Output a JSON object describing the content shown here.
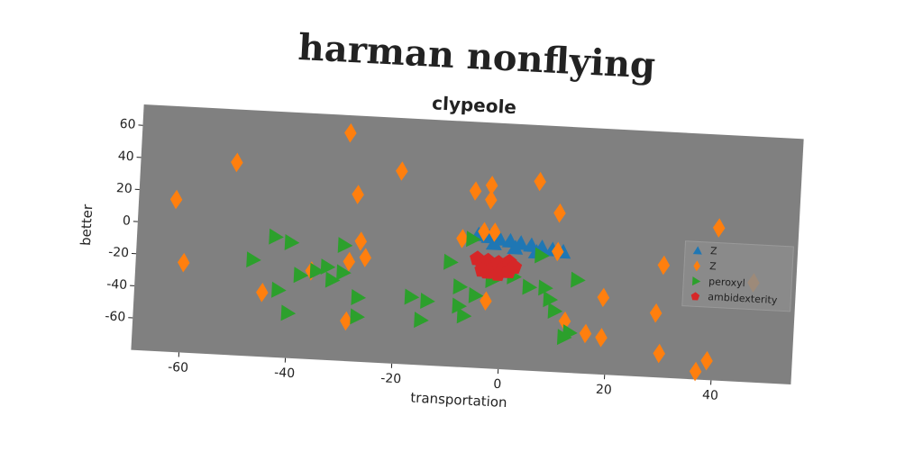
{
  "chart_data": {
    "type": "scatter",
    "title": "harman nonflying",
    "subtitle": "clypeole",
    "x_label": "transportation",
    "y_label": "better",
    "xlim": [
      -69,
      55
    ],
    "ylim": [
      -80,
      73
    ],
    "xticks": [
      -60,
      -40,
      -20,
      0,
      20,
      40
    ],
    "yticks": [
      -60,
      -40,
      -20,
      0,
      20,
      40,
      60
    ],
    "legend": "right",
    "series": [
      {
        "name": "Z",
        "color": "#1f77b4",
        "marker": "triangle-up",
        "x": [
          -5,
          -3,
          -1,
          1,
          3,
          5,
          7,
          9,
          11,
          -2,
          2,
          6
        ],
        "y": [
          3,
          2,
          1,
          0,
          -1,
          -2,
          -3,
          -4,
          -5,
          -2,
          -4,
          -6
        ]
      },
      {
        "name": "Z",
        "color": "#ff7f0e",
        "marker": "diamond",
        "x": [
          -62,
          -60,
          -51,
          -45,
          -36,
          -30,
          -29,
          -28,
          -27,
          -26,
          -29,
          -20,
          -6,
          -4,
          -3,
          -3,
          -2,
          -3,
          6,
          10,
          10,
          -8,
          12,
          16,
          19,
          19,
          29,
          30,
          30,
          37,
          39,
          40,
          47
        ],
        "y": [
          15,
          -24,
          40,
          -40,
          -25,
          62,
          -18,
          24,
          -5,
          -15,
          -55,
          40,
          30,
          5,
          34,
          25,
          5,
          -38,
          38,
          19,
          -5,
          0,
          -48,
          -55,
          -32,
          -57,
          -40,
          -10,
          -65,
          -75,
          -68,
          15,
          -18
        ]
      },
      {
        "name": "peroxyl",
        "color": "#2ca02c",
        "marker": "triangle-right",
        "x": [
          -47,
          -43,
          -40,
          -42,
          -38,
          -35,
          -33,
          -32,
          -30,
          -30,
          -27,
          -40,
          -27,
          -17,
          -14,
          -15,
          -10,
          -8,
          -8,
          -7,
          -5,
          -6,
          -2,
          2,
          5,
          7,
          8,
          9,
          10,
          12,
          13,
          14
        ],
        "y": [
          -20,
          -5,
          -8,
          -38,
          -28,
          -25,
          -22,
          -30,
          -25,
          -8,
          -40,
          -52,
          -52,
          -38,
          -40,
          -52,
          -15,
          -30,
          -42,
          -48,
          -35,
          0,
          -25,
          -22,
          -28,
          -8,
          -28,
          -35,
          -42,
          -58,
          -55,
          -22
        ]
      },
      {
        "name": "ambidexterity",
        "color": "#d62728",
        "marker": "pentagon",
        "x": [
          -5,
          -4,
          -3,
          -2,
          -1,
          0,
          1,
          2,
          -3,
          -1,
          1,
          -4
        ],
        "y": [
          -12,
          -16,
          -13,
          -18,
          -14,
          -17,
          -13,
          -16,
          -20,
          -21,
          -19,
          -19
        ]
      }
    ]
  }
}
